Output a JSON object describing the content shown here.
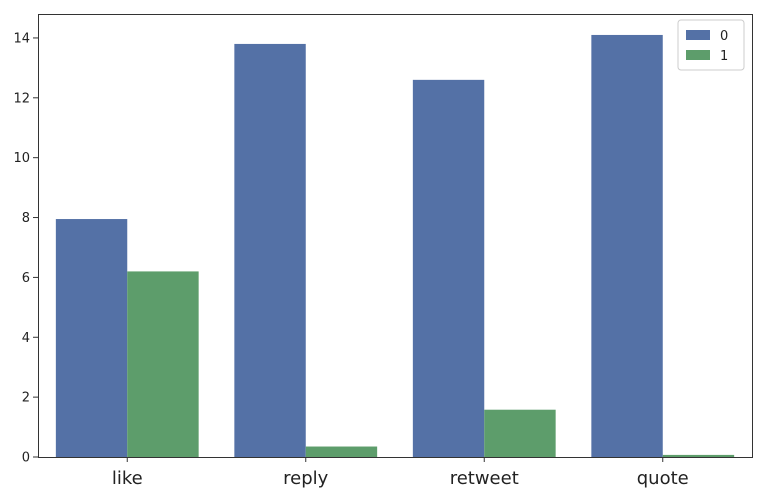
{
  "chart_data": {
    "type": "bar",
    "title": "",
    "xlabel": "",
    "ylabel": "",
    "categories": [
      "like",
      "reply",
      "retweet",
      "quote"
    ],
    "series": [
      {
        "name": "0",
        "values": [
          7.95,
          13.8,
          12.6,
          14.1
        ],
        "color": "#5471a6"
      },
      {
        "name": "1",
        "values": [
          6.2,
          0.35,
          1.58,
          0.07
        ],
        "color": "#5d9d6b"
      }
    ],
    "ylim": [
      0,
      14.8
    ],
    "yticks": [
      0,
      2,
      4,
      6,
      8,
      10,
      12,
      14
    ],
    "grid": false,
    "legend_position": "top-right"
  }
}
